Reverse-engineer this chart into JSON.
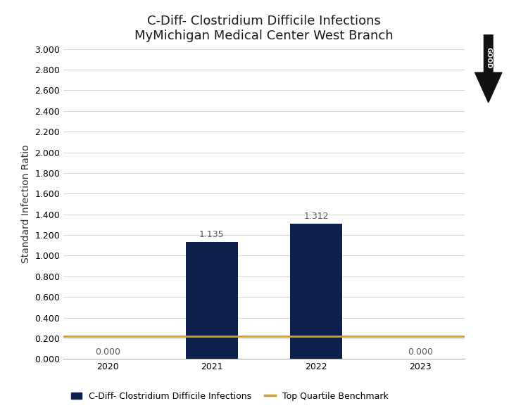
{
  "title_line1": "C-Diff- Clostridium Difficile Infections",
  "title_line2": "MyMichigan Medical Center West Branch",
  "categories": [
    2020,
    2021,
    2022,
    2023
  ],
  "values": [
    0.0,
    1.135,
    1.312,
    0.0
  ],
  "bar_color": "#0d1f4c",
  "benchmark_value": 0.22,
  "benchmark_color": "#d4a017",
  "ylabel": "Standard Infection Ratio",
  "ylim": [
    0.0,
    3.0
  ],
  "yticks": [
    0.0,
    0.2,
    0.4,
    0.6,
    0.8,
    1.0,
    1.2,
    1.4,
    1.6,
    1.8,
    2.0,
    2.2,
    2.4,
    2.6,
    2.8,
    3.0
  ],
  "bar_labels": [
    "0.000",
    "1.135",
    "1.312",
    "0.000"
  ],
  "legend_bar_label": "C-Diff- Clostridium Difficile Infections",
  "legend_line_label": "Top Quartile Benchmark",
  "good_arrow_color": "#111111",
  "background_color": "#ffffff",
  "title_fontsize": 13,
  "axis_fontsize": 10,
  "tick_fontsize": 9
}
